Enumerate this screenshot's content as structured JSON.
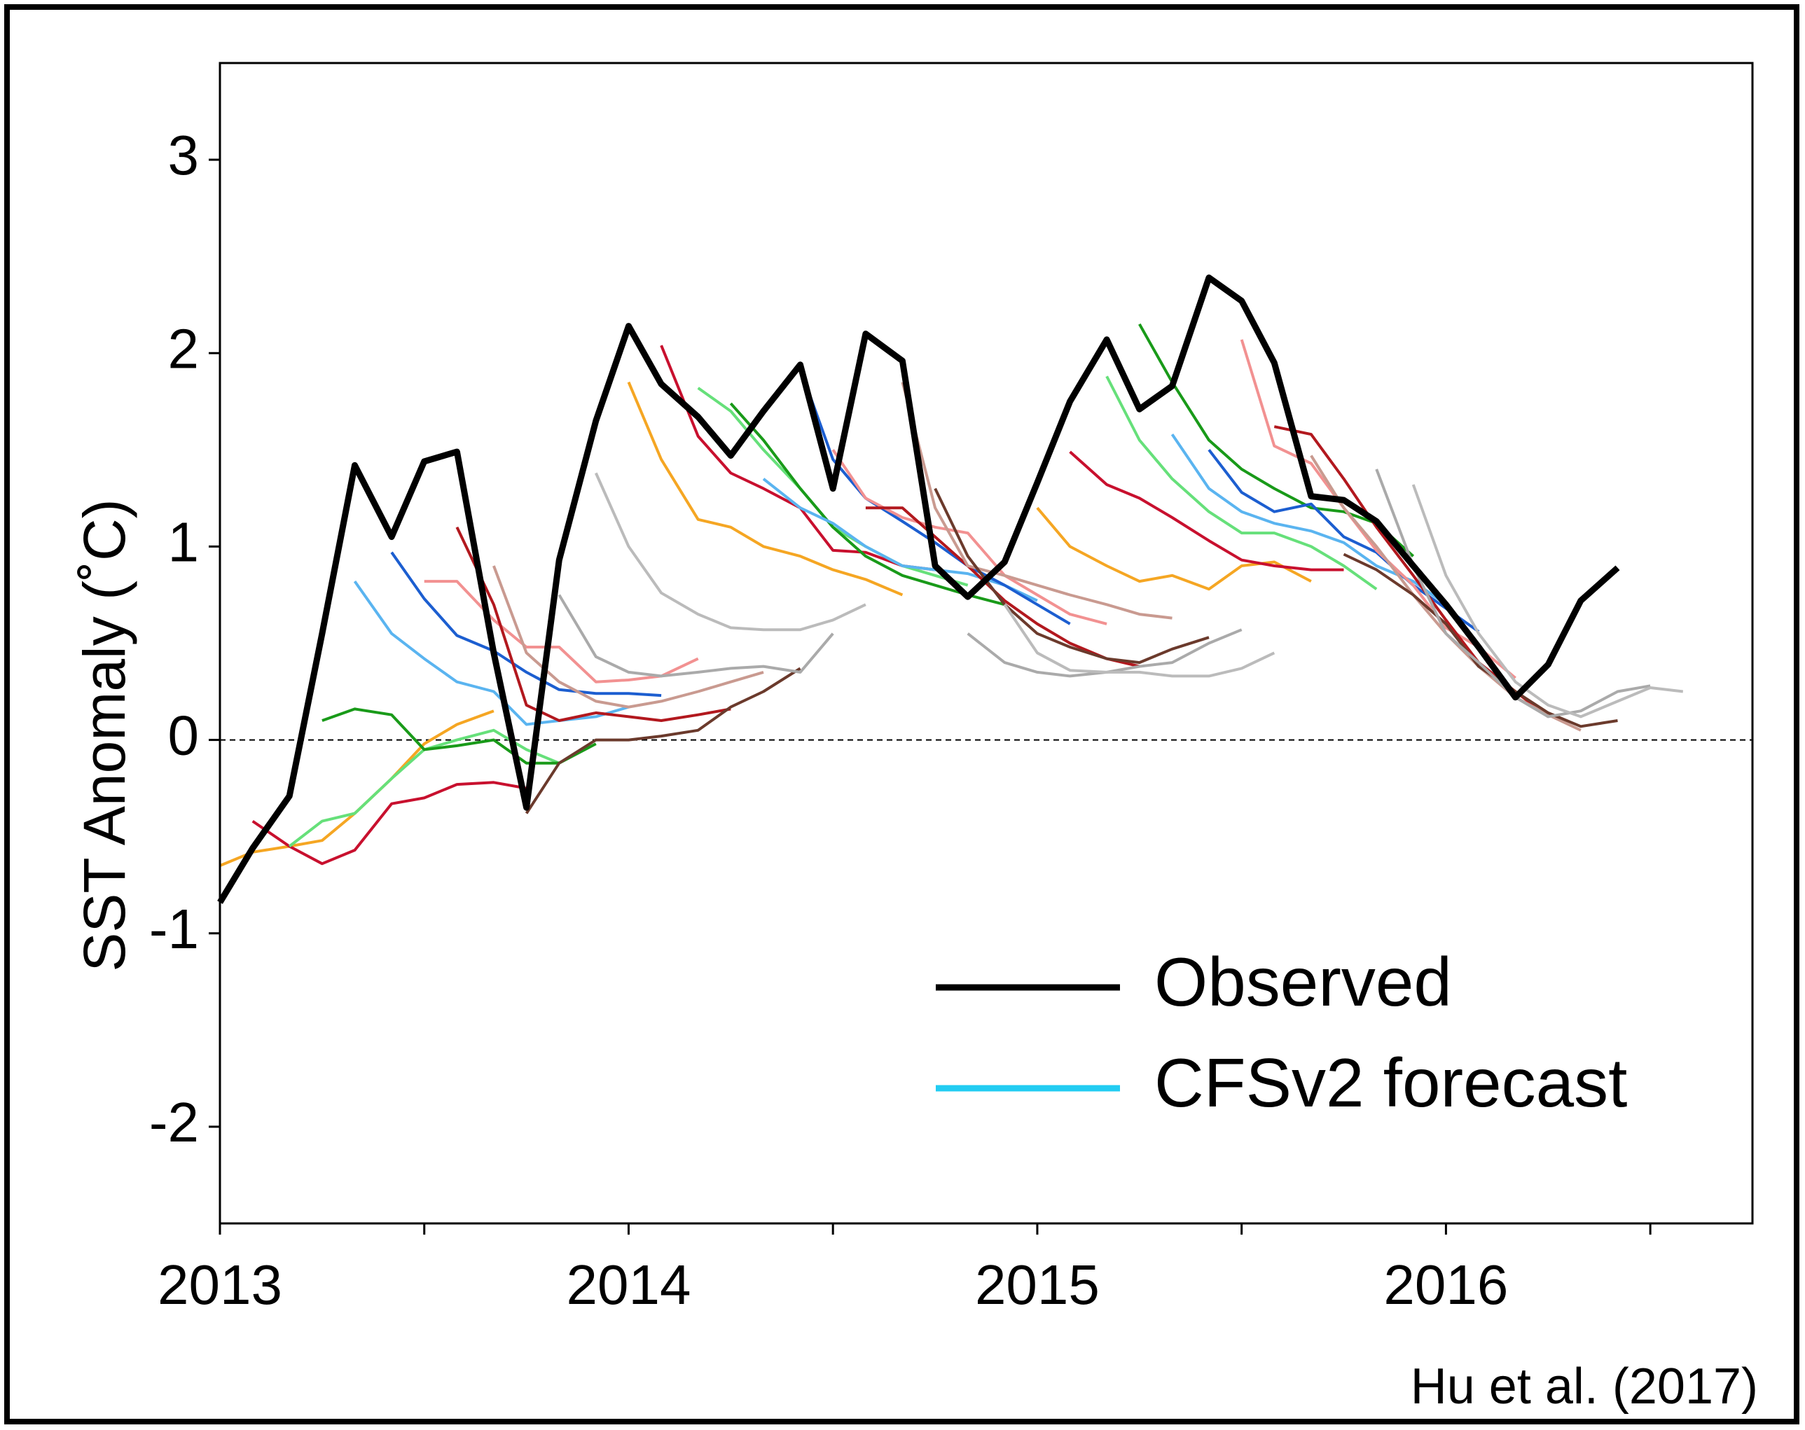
{
  "chart_data": {
    "type": "line",
    "ylabel": "SST Anomaly (˚C)",
    "source": "Hu et al. (2017)",
    "xlim": [
      2013,
      2016.75
    ],
    "xticks": [
      2013,
      2014,
      2015,
      2016
    ],
    "minor_xticks": [
      2013.5,
      2014.5,
      2015.5,
      2016.5
    ],
    "ylim": [
      -2.5,
      3.5
    ],
    "yticks": [
      -2,
      -1,
      0,
      1,
      2,
      3
    ],
    "hline": 0,
    "legend": [
      {
        "name": "Observed",
        "color": "#000000"
      },
      {
        "name": "CFSv2 forecast",
        "color": "#22ccf2"
      }
    ],
    "series": [
      {
        "color": "#f5a623",
        "x": [
          2013,
          2013.08,
          2013.17,
          2013.25,
          2013.33,
          2013.42,
          2013.5,
          2013.58,
          2013.67
        ],
        "values": [
          -0.65,
          -0.58,
          -0.55,
          -0.52,
          -0.38,
          -0.2,
          -0.02,
          0.08,
          0.15
        ]
      },
      {
        "color": "#c8102e",
        "x": [
          2013.08,
          2013.17,
          2013.25,
          2013.33,
          2013.42,
          2013.5,
          2013.58,
          2013.67,
          2013.75
        ],
        "values": [
          -0.42,
          -0.55,
          -0.64,
          -0.57,
          -0.33,
          -0.3,
          -0.23,
          -0.22,
          -0.25
        ]
      },
      {
        "color": "#66e07a",
        "x": [
          2013.17,
          2013.25,
          2013.33,
          2013.42,
          2013.5,
          2013.58,
          2013.67,
          2013.75,
          2013.83
        ],
        "values": [
          -0.55,
          -0.42,
          -0.38,
          -0.2,
          -0.05,
          0,
          0.05,
          -0.05,
          -0.12
        ]
      },
      {
        "color": "#199a19",
        "x": [
          2013.25,
          2013.33,
          2013.42,
          2013.5,
          2013.58,
          2013.67,
          2013.75,
          2013.83,
          2013.92
        ],
        "values": [
          0.1,
          0.16,
          0.13,
          -0.05,
          -0.03,
          0,
          -0.12,
          -0.12,
          -0.02
        ]
      },
      {
        "color": "#5ab4f0",
        "x": [
          2013.33,
          2013.42,
          2013.5,
          2013.58,
          2013.67,
          2013.75,
          2013.83,
          2013.92,
          2014
        ],
        "values": [
          0.82,
          0.55,
          0.42,
          0.3,
          0.25,
          0.08,
          0.1,
          0.12,
          0.17
        ]
      },
      {
        "color": "#1c5ed0",
        "x": [
          2013.42,
          2013.5,
          2013.58,
          2013.67,
          2013.75,
          2013.83,
          2013.92,
          2014,
          2014.08
        ],
        "values": [
          0.97,
          0.73,
          0.54,
          0.46,
          0.35,
          0.26,
          0.24,
          0.24,
          0.23
        ]
      },
      {
        "color": "#f29191",
        "x": [
          2013.5,
          2013.58,
          2013.67,
          2013.75,
          2013.83,
          2013.92,
          2014,
          2014.08,
          2014.17
        ],
        "values": [
          0.82,
          0.82,
          0.62,
          0.48,
          0.48,
          0.3,
          0.31,
          0.33,
          0.42
        ]
      },
      {
        "color": "#b2181e",
        "x": [
          2013.58,
          2013.67,
          2013.75,
          2013.83,
          2013.92,
          2014,
          2014.08,
          2014.17,
          2014.25
        ],
        "values": [
          1.1,
          0.7,
          0.18,
          0.1,
          0.14,
          0.12,
          0.1,
          0.13,
          0.16
        ]
      },
      {
        "color": "#c99a90",
        "x": [
          2013.67,
          2013.75,
          2013.83,
          2013.92,
          2014,
          2014.08,
          2014.17,
          2014.25,
          2014.33
        ],
        "values": [
          0.9,
          0.45,
          0.3,
          0.2,
          0.17,
          0.2,
          0.25,
          0.3,
          0.35
        ]
      },
      {
        "color": "#6b3a2c",
        "x": [
          2013.75,
          2013.83,
          2013.92,
          2014,
          2014.08,
          2014.17,
          2014.25,
          2014.33,
          2014.42
        ],
        "values": [
          -0.38,
          -0.12,
          0,
          0,
          0.02,
          0.05,
          0.17,
          0.25,
          0.37
        ]
      },
      {
        "color": "#aaaaaa",
        "x": [
          2013.83,
          2013.92,
          2014,
          2014.08,
          2014.17,
          2014.25,
          2014.33,
          2014.42,
          2014.5
        ],
        "values": [
          0.75,
          0.43,
          0.35,
          0.33,
          0.35,
          0.37,
          0.38,
          0.35,
          0.55
        ]
      },
      {
        "color": "#bbbbbb",
        "x": [
          2013.92,
          2014,
          2014.08,
          2014.17,
          2014.25,
          2014.33,
          2014.42,
          2014.5,
          2014.58
        ],
        "values": [
          1.38,
          1,
          0.76,
          0.65,
          0.58,
          0.57,
          0.57,
          0.62,
          0.7
        ]
      },
      {
        "color": "#f5a623",
        "x": [
          2014,
          2014.08,
          2014.17,
          2014.25,
          2014.33,
          2014.42,
          2014.5,
          2014.58,
          2014.67
        ],
        "values": [
          1.85,
          1.45,
          1.14,
          1.1,
          1,
          0.95,
          0.88,
          0.83,
          0.75
        ]
      },
      {
        "color": "#c8102e",
        "x": [
          2014.08,
          2014.17,
          2014.25,
          2014.33,
          2014.42,
          2014.5,
          2014.58,
          2014.67,
          2014.75
        ],
        "values": [
          2.04,
          1.57,
          1.38,
          1.3,
          1.2,
          0.98,
          0.97,
          0.9,
          0.88
        ]
      },
      {
        "color": "#66e07a",
        "x": [
          2014.17,
          2014.25,
          2014.33,
          2014.42,
          2014.5,
          2014.58,
          2014.67,
          2014.75,
          2014.83
        ],
        "values": [
          1.82,
          1.7,
          1.5,
          1.3,
          1.1,
          1,
          0.9,
          0.85,
          0.8
        ]
      },
      {
        "color": "#199a19",
        "x": [
          2014.25,
          2014.33,
          2014.42,
          2014.5,
          2014.58,
          2014.67,
          2014.75,
          2014.83,
          2014.92
        ],
        "values": [
          1.74,
          1.55,
          1.3,
          1.1,
          0.95,
          0.85,
          0.8,
          0.75,
          0.7
        ]
      },
      {
        "color": "#5ab4f0",
        "x": [
          2014.33,
          2014.42,
          2014.5,
          2014.58,
          2014.67,
          2014.75,
          2014.83,
          2014.92,
          2015
        ],
        "values": [
          1.35,
          1.2,
          1.12,
          1,
          0.9,
          0.88,
          0.86,
          0.8,
          0.72
        ]
      },
      {
        "color": "#1c5ed0",
        "x": [
          2014.42,
          2014.5,
          2014.58,
          2014.67,
          2014.75,
          2014.83,
          2014.92,
          2015,
          2015.08
        ],
        "values": [
          1.92,
          1.45,
          1.25,
          1.13,
          1.02,
          0.9,
          0.8,
          0.7,
          0.6
        ]
      },
      {
        "color": "#f29191",
        "x": [
          2014.5,
          2014.58,
          2014.67,
          2014.75,
          2014.83,
          2014.92,
          2015,
          2015.08,
          2015.17
        ],
        "values": [
          1.5,
          1.25,
          1.15,
          1.1,
          1.07,
          0.85,
          0.75,
          0.65,
          0.6
        ]
      },
      {
        "color": "#b2181e",
        "x": [
          2014.58,
          2014.67,
          2014.75,
          2014.83,
          2014.92,
          2015,
          2015.08,
          2015.17,
          2015.25
        ],
        "values": [
          1.2,
          1.2,
          1.05,
          0.9,
          0.72,
          0.6,
          0.5,
          0.42,
          0.38
        ]
      },
      {
        "color": "#c99a90",
        "x": [
          2014.67,
          2014.75,
          2014.83,
          2014.92,
          2015,
          2015.08,
          2015.17,
          2015.25,
          2015.33
        ],
        "values": [
          1.85,
          1.2,
          0.9,
          0.85,
          0.8,
          0.75,
          0.7,
          0.65,
          0.63
        ]
      },
      {
        "color": "#6b3a2c",
        "x": [
          2014.75,
          2014.83,
          2014.92,
          2015,
          2015.08,
          2015.17,
          2015.25,
          2015.33,
          2015.42
        ],
        "values": [
          1.3,
          0.95,
          0.7,
          0.55,
          0.48,
          0.42,
          0.4,
          0.47,
          0.53
        ]
      },
      {
        "color": "#aaaaaa",
        "x": [
          2014.83,
          2014.92,
          2015,
          2015.08,
          2015.17,
          2015.25,
          2015.33,
          2015.42,
          2015.5
        ],
        "values": [
          0.55,
          0.4,
          0.35,
          0.33,
          0.35,
          0.38,
          0.4,
          0.5,
          0.57
        ]
      },
      {
        "color": "#bbbbbb",
        "x": [
          2014.92,
          2015,
          2015.08,
          2015.17,
          2015.25,
          2015.33,
          2015.42,
          2015.5,
          2015.58
        ],
        "values": [
          0.7,
          0.45,
          0.36,
          0.35,
          0.35,
          0.33,
          0.33,
          0.37,
          0.45
        ]
      },
      {
        "color": "#f5a623",
        "x": [
          2015,
          2015.08,
          2015.17,
          2015.25,
          2015.33,
          2015.42,
          2015.5,
          2015.58,
          2015.67
        ],
        "values": [
          1.2,
          1,
          0.9,
          0.82,
          0.85,
          0.78,
          0.9,
          0.92,
          0.82
        ]
      },
      {
        "color": "#c8102e",
        "x": [
          2015.08,
          2015.17,
          2015.25,
          2015.33,
          2015.42,
          2015.5,
          2015.58,
          2015.67,
          2015.75
        ],
        "values": [
          1.49,
          1.32,
          1.25,
          1.15,
          1.03,
          0.93,
          0.9,
          0.88,
          0.88
        ]
      },
      {
        "color": "#66e07a",
        "x": [
          2015.17,
          2015.25,
          2015.33,
          2015.42,
          2015.5,
          2015.58,
          2015.67,
          2015.75,
          2015.83
        ],
        "values": [
          1.88,
          1.55,
          1.35,
          1.18,
          1.07,
          1.07,
          1,
          0.9,
          0.78
        ]
      },
      {
        "color": "#199a19",
        "x": [
          2015.25,
          2015.33,
          2015.42,
          2015.5,
          2015.58,
          2015.67,
          2015.75,
          2015.83,
          2015.92
        ],
        "values": [
          2.15,
          1.85,
          1.55,
          1.4,
          1.3,
          1.2,
          1.18,
          1.12,
          0.95
        ]
      },
      {
        "color": "#5ab4f0",
        "x": [
          2015.33,
          2015.42,
          2015.5,
          2015.58,
          2015.67,
          2015.75,
          2015.83,
          2015.92,
          2016
        ],
        "values": [
          1.58,
          1.3,
          1.18,
          1.12,
          1.08,
          1.02,
          0.9,
          0.82,
          0.7
        ]
      },
      {
        "color": "#1c5ed0",
        "x": [
          2015.42,
          2015.5,
          2015.58,
          2015.67,
          2015.75,
          2015.83,
          2015.92,
          2016,
          2016.08
        ],
        "values": [
          1.5,
          1.28,
          1.18,
          1.22,
          1.05,
          0.97,
          0.8,
          0.68,
          0.56
        ]
      },
      {
        "color": "#f29191",
        "x": [
          2015.5,
          2015.58,
          2015.67,
          2015.75,
          2015.83,
          2015.92,
          2016,
          2016.08,
          2016.17
        ],
        "values": [
          2.07,
          1.52,
          1.43,
          1.2,
          0.98,
          0.8,
          0.58,
          0.48,
          0.32
        ]
      },
      {
        "color": "#b2181e",
        "x": [
          2015.58,
          2015.67,
          2015.75,
          2015.83,
          2015.92,
          2016,
          2016.08,
          2016.17,
          2016.25
        ],
        "values": [
          1.62,
          1.58,
          1.35,
          1.1,
          0.85,
          0.62,
          0.4,
          0.25,
          0.12
        ]
      },
      {
        "color": "#c99a90",
        "x": [
          2015.67,
          2015.75,
          2015.83,
          2015.92,
          2016,
          2016.08,
          2016.17,
          2016.25,
          2016.33
        ],
        "values": [
          1.47,
          1.2,
          1,
          0.75,
          0.55,
          0.38,
          0.22,
          0.13,
          0.05
        ]
      },
      {
        "color": "#6b3a2c",
        "x": [
          2015.75,
          2015.83,
          2015.92,
          2016,
          2016.08,
          2016.17,
          2016.25,
          2016.33,
          2016.42
        ],
        "values": [
          0.96,
          0.88,
          0.75,
          0.6,
          0.38,
          0.25,
          0.14,
          0.07,
          0.1
        ]
      },
      {
        "color": "#aaaaaa",
        "x": [
          2015.83,
          2015.92,
          2016,
          2016.08,
          2016.17,
          2016.25,
          2016.33,
          2016.42,
          2016.5
        ],
        "values": [
          1.4,
          0.9,
          0.55,
          0.4,
          0.22,
          0.12,
          0.15,
          0.25,
          0.28
        ]
      },
      {
        "color": "#bbbbbb",
        "x": [
          2015.92,
          2016,
          2016.08,
          2016.17,
          2016.25,
          2016.33,
          2016.42,
          2016.5,
          2016.58
        ],
        "values": [
          1.32,
          0.85,
          0.55,
          0.3,
          0.18,
          0.12,
          0.2,
          0.27,
          0.25
        ]
      },
      {
        "color": "#000000",
        "width": 9,
        "x": [
          2013,
          2013.08,
          2013.17,
          2013.25,
          2013.33,
          2013.42,
          2013.5,
          2013.58,
          2013.67,
          2013.75,
          2013.83,
          2013.92,
          2014,
          2014.08,
          2014.17,
          2014.25,
          2014.33,
          2014.42,
          2014.5,
          2014.58,
          2014.67,
          2014.75,
          2014.83,
          2014.92,
          2015,
          2015.08,
          2015.17,
          2015.25,
          2015.33,
          2015.42,
          2015.5,
          2015.58,
          2015.67,
          2015.75,
          2015.83,
          2015.92,
          2016,
          2016.08,
          2016.17,
          2016.25,
          2016.33,
          2016.42
        ],
        "values": [
          -0.84,
          -0.56,
          -0.29,
          0.55,
          1.42,
          1.05,
          1.44,
          1.49,
          0.45,
          -0.35,
          0.93,
          1.65,
          2.14,
          1.84,
          1.67,
          1.47,
          1.7,
          1.94,
          1.3,
          2.1,
          1.96,
          0.9,
          0.74,
          0.92,
          1.33,
          1.75,
          2.07,
          1.71,
          1.83,
          2.39,
          2.27,
          1.95,
          1.26,
          1.24,
          1.13,
          0.9,
          0.7,
          0.48,
          0.22,
          0.39,
          0.72,
          0.89
        ]
      }
    ]
  }
}
